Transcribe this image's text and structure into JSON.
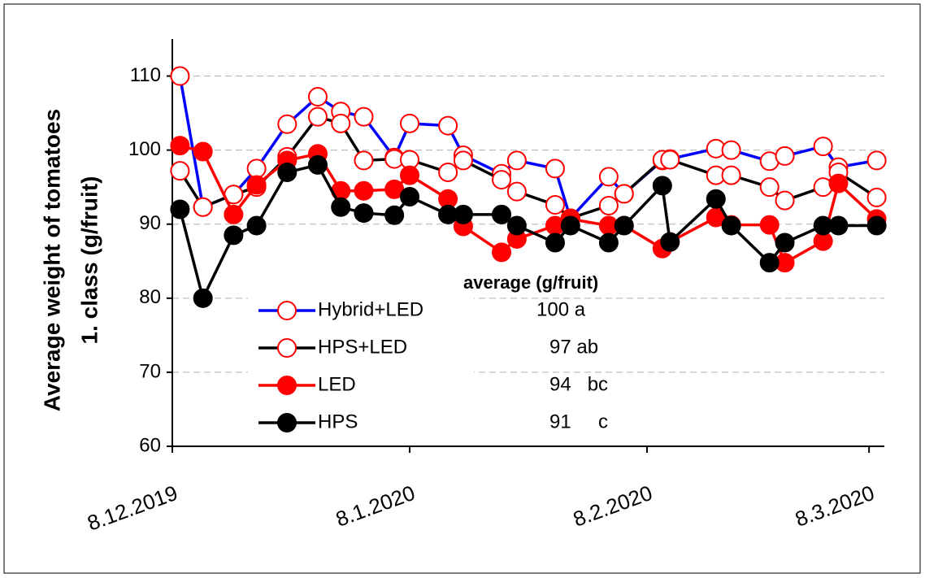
{
  "chart_data": {
    "type": "line",
    "ylabel": [
      "Average weight of tomatoes",
      "1. class (g/fruit)"
    ],
    "annotation": "average (g/fruit)",
    "x": [
      "9.12.2019",
      "12.12.2019",
      "16.12.2019",
      "19.12.2019",
      "23.12.2019",
      "27.12.2019",
      "30.12.2019",
      "2.1.2020",
      "6.1.2020",
      "8.1.2020",
      "13.1.2020",
      "15.1.2020",
      "20.1.2020",
      "22.1.2020",
      "27.1.2020",
      "29.1.2020",
      "3.2.2020",
      "5.2.2020",
      "10.2.2020",
      "11.2.2020",
      "17.2.2020",
      "19.2.2020",
      "24.2.2020",
      "26.2.2020",
      "2.3.2020",
      "4.3.2020",
      "9.3.2020"
    ],
    "xlim": [
      "8.12.2019",
      "10.3.2020"
    ],
    "xticks": [
      "8.12.2019",
      "8.1.2020",
      "8.2.2020",
      "8.3.2020"
    ],
    "ylim": [
      60,
      115
    ],
    "yticks": [
      60,
      70,
      80,
      90,
      100,
      110
    ],
    "grid": true,
    "series": [
      {
        "name": "Hybrid+LED",
        "average": "100 a",
        "color": "#0000ff",
        "marker_color": "#ff0000",
        "marker_fill": false,
        "values": [
          110,
          92.3,
          94,
          97.5,
          103.5,
          107.2,
          105.2,
          104.5,
          99,
          103.6,
          103.3,
          99.3,
          96.8,
          98.6,
          97.5,
          90.8,
          96.4,
          94.1,
          98.6,
          98.8,
          100.2,
          100,
          98.5,
          99.2,
          100.5,
          97.7,
          98.6
        ]
      },
      {
        "name": "HPS+LED",
        "average": "97 ab",
        "color": "#000000",
        "marker_color": "#ff0000",
        "marker_fill": false,
        "values": [
          97.2,
          92.3,
          94,
          95,
          99.1,
          104.5,
          103.6,
          98.6,
          98.8,
          98.7,
          97,
          98.6,
          96,
          94.4,
          92.6,
          90.8,
          92.5,
          94.1,
          98.7,
          98.7,
          96.6,
          96.6,
          95,
          93.2,
          95,
          97,
          93.6
        ]
      },
      {
        "name": "LED",
        "average": "94   bc",
        "color": "#ff0000",
        "marker_color": "#ff0000",
        "marker_fill": true,
        "values": [
          100.6,
          99.8,
          91.3,
          95.3,
          98.6,
          99.5,
          94.5,
          94.5,
          94.7,
          96.6,
          93.4,
          89.7,
          86.2,
          88,
          89.8,
          90.7,
          89.8,
          89.8,
          86.7,
          87.6,
          90.9,
          89.9,
          89.9,
          84.8,
          87.7,
          95.5,
          90.7
        ]
      },
      {
        "name": "HPS",
        "average": "91     c",
        "color": "#000000",
        "marker_color": "#000000",
        "marker_fill": true,
        "values": [
          92,
          80,
          88.5,
          89.8,
          97,
          98,
          92.3,
          91.5,
          91.2,
          93.7,
          91.3,
          91.3,
          91.3,
          89.8,
          87.5,
          89.8,
          87.5,
          89.8,
          95.2,
          87.6,
          93.4,
          89.8,
          84.8,
          87.5,
          89.8,
          89.8,
          89.8
        ]
      }
    ]
  }
}
